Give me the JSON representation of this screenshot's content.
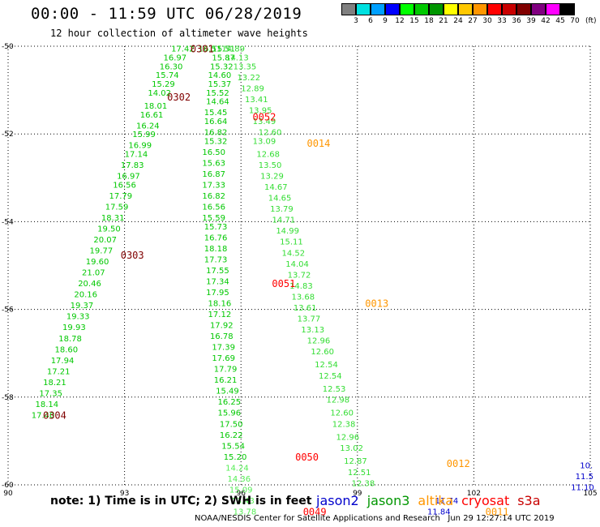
{
  "header": {
    "title": "00:00 - 11:59 UTC 06/28/2019",
    "subtitle": "12 hour collection of altimeter wave heights"
  },
  "colorbar": {
    "unit": "(ft)",
    "labels": [
      "3",
      "6",
      "9",
      "12",
      "15",
      "18",
      "21",
      "24",
      "27",
      "30",
      "33",
      "36",
      "39",
      "42",
      "45",
      "70"
    ],
    "colors": [
      "#808080",
      "#00e0e0",
      "#00a0ff",
      "#0000ff",
      "#00ff00",
      "#00c800",
      "#009600",
      "#ffff00",
      "#ffc800",
      "#ff9600",
      "#ff0000",
      "#c80000",
      "#800000",
      "#800080",
      "#ff00ff",
      "#000000"
    ]
  },
  "footer": {
    "note": "note: 1) Time is in UTC; 2) SWH is in feet",
    "legend": [
      {
        "label": "jason2",
        "color": "#0000cc"
      },
      {
        "label": "jason3",
        "color": "#009600"
      },
      {
        "label": "altika",
        "color": "#ff9600"
      },
      {
        "label": "cryosat",
        "color": "#ff0000"
      },
      {
        "label": "s3a",
        "color": "#c80000"
      }
    ],
    "credit": "NOAA/NESDIS Center for Satellite Applications and Research   Jun 29 12:27:14 UTC 2019"
  },
  "chart_data": {
    "type": "scatter",
    "title": "00:00 - 11:59 UTC 06/28/2019",
    "xlim": [
      90,
      105
    ],
    "ylim": [
      -60,
      -50
    ],
    "xticks": [
      "90",
      "93",
      "96",
      "99",
      "102",
      "105"
    ],
    "yticks": [
      "-50",
      "-52",
      "-54",
      "-56",
      "-58",
      "-60"
    ],
    "grid": true,
    "series": [
      {
        "satellite": "track-1",
        "color": "#00c800",
        "points": [
          {
            "x": 94.5,
            "y": -50.05,
            "v": "17.42"
          },
          {
            "x": 95.2,
            "y": -50.05,
            "v": "16.51"
          },
          {
            "x": 94.3,
            "y": -50.25,
            "v": "16.97"
          },
          {
            "x": 94.2,
            "y": -50.45,
            "v": "16.30"
          },
          {
            "x": 94.1,
            "y": -50.65,
            "v": "15.74"
          },
          {
            "x": 94.0,
            "y": -50.85,
            "v": "15.29"
          },
          {
            "x": 93.9,
            "y": -51.05,
            "v": "14.02"
          },
          {
            "x": 93.8,
            "y": -51.35,
            "v": "18.01"
          },
          {
            "x": 93.7,
            "y": -51.55,
            "v": "16.61"
          },
          {
            "x": 93.6,
            "y": -51.8,
            "v": "16.24"
          },
          {
            "x": 93.5,
            "y": -52.0,
            "v": "15.99"
          },
          {
            "x": 93.4,
            "y": -52.25,
            "v": "16.99"
          },
          {
            "x": 93.3,
            "y": -52.45,
            "v": "17.14"
          },
          {
            "x": 93.2,
            "y": -52.7,
            "v": "17.83"
          },
          {
            "x": 93.1,
            "y": -52.95,
            "v": "16.97"
          },
          {
            "x": 93.0,
            "y": -53.15,
            "v": "16.56"
          },
          {
            "x": 92.9,
            "y": -53.4,
            "v": "17.79"
          },
          {
            "x": 92.8,
            "y": -53.65,
            "v": "17.59"
          },
          {
            "x": 92.7,
            "y": -53.9,
            "v": "18.31"
          },
          {
            "x": 92.6,
            "y": -54.15,
            "v": "19.50"
          },
          {
            "x": 92.5,
            "y": -54.4,
            "v": "20.07"
          },
          {
            "x": 92.4,
            "y": -54.65,
            "v": "19.77"
          },
          {
            "x": 92.3,
            "y": -54.9,
            "v": "19.60"
          },
          {
            "x": 92.2,
            "y": -55.15,
            "v": "21.07"
          },
          {
            "x": 92.1,
            "y": -55.4,
            "v": "20.46"
          },
          {
            "x": 92.0,
            "y": -55.65,
            "v": "20.16"
          },
          {
            "x": 91.9,
            "y": -55.9,
            "v": "19.37"
          },
          {
            "x": 91.8,
            "y": -56.15,
            "v": "19.33"
          },
          {
            "x": 91.7,
            "y": -56.4,
            "v": "19.93"
          },
          {
            "x": 91.6,
            "y": -56.65,
            "v": "18.78"
          },
          {
            "x": 91.5,
            "y": -56.9,
            "v": "18.60"
          },
          {
            "x": 91.4,
            "y": -57.15,
            "v": "17.94"
          },
          {
            "x": 91.3,
            "y": -57.4,
            "v": "17.21"
          },
          {
            "x": 91.2,
            "y": -57.65,
            "v": "18.21"
          },
          {
            "x": 91.1,
            "y": -57.9,
            "v": "17.35"
          },
          {
            "x": 91.0,
            "y": -58.15,
            "v": "18.14"
          },
          {
            "x": 90.9,
            "y": -58.4,
            "v": "17.40"
          }
        ]
      },
      {
        "satellite": "track-2",
        "color": "#00c800",
        "points": [
          {
            "x": 95.55,
            "y": -50.05,
            "v": "15.51"
          },
          {
            "x": 95.55,
            "y": -50.25,
            "v": "15.87"
          },
          {
            "x": 95.5,
            "y": -50.45,
            "v": "15.32"
          },
          {
            "x": 95.45,
            "y": -50.65,
            "v": "14.60"
          },
          {
            "x": 95.45,
            "y": -50.85,
            "v": "15.37"
          },
          {
            "x": 95.4,
            "y": -51.05,
            "v": "15.52"
          },
          {
            "x": 95.4,
            "y": -51.25,
            "v": "14.64"
          },
          {
            "x": 95.35,
            "y": -51.5,
            "v": "15.45"
          },
          {
            "x": 95.35,
            "y": -51.7,
            "v": "16.64"
          },
          {
            "x": 95.35,
            "y": -51.95,
            "v": "16.82"
          },
          {
            "x": 95.35,
            "y": -52.15,
            "v": "15.32"
          },
          {
            "x": 95.3,
            "y": -52.4,
            "v": "16.50"
          },
          {
            "x": 95.3,
            "y": -52.65,
            "v": "15.63"
          },
          {
            "x": 95.3,
            "y": -52.9,
            "v": "16.87"
          },
          {
            "x": 95.3,
            "y": -53.15,
            "v": "17.33"
          },
          {
            "x": 95.3,
            "y": -53.4,
            "v": "16.82"
          },
          {
            "x": 95.3,
            "y": -53.65,
            "v": "16.56"
          },
          {
            "x": 95.3,
            "y": -53.9,
            "v": "15.59"
          },
          {
            "x": 95.35,
            "y": -54.1,
            "v": "15.73"
          },
          {
            "x": 95.35,
            "y": -54.35,
            "v": "16.76"
          },
          {
            "x": 95.35,
            "y": -54.6,
            "v": "18.18"
          },
          {
            "x": 95.35,
            "y": -54.85,
            "v": "17.73"
          },
          {
            "x": 95.4,
            "y": -55.1,
            "v": "17.55"
          },
          {
            "x": 95.4,
            "y": -55.35,
            "v": "17.34"
          },
          {
            "x": 95.4,
            "y": -55.6,
            "v": "17.95"
          },
          {
            "x": 95.45,
            "y": -55.85,
            "v": "18.16"
          },
          {
            "x": 95.45,
            "y": -56.1,
            "v": "17.12"
          },
          {
            "x": 95.5,
            "y": -56.35,
            "v": "17.92"
          },
          {
            "x": 95.5,
            "y": -56.6,
            "v": "16.78"
          },
          {
            "x": 95.55,
            "y": -56.85,
            "v": "17.39"
          },
          {
            "x": 95.55,
            "y": -57.1,
            "v": "17.69"
          },
          {
            "x": 95.6,
            "y": -57.35,
            "v": "17.79"
          },
          {
            "x": 95.6,
            "y": -57.6,
            "v": "16.21"
          },
          {
            "x": 95.65,
            "y": -57.85,
            "v": "15.49"
          },
          {
            "x": 95.7,
            "y": -58.1,
            "v": "16.25"
          },
          {
            "x": 95.7,
            "y": -58.35,
            "v": "15.96"
          },
          {
            "x": 95.75,
            "y": -58.6,
            "v": "17.50"
          },
          {
            "x": 95.75,
            "y": -58.85,
            "v": "16.22"
          },
          {
            "x": 95.8,
            "y": -59.1,
            "v": "15.54"
          },
          {
            "x": 95.85,
            "y": -59.35,
            "v": "15.20"
          }
        ]
      },
      {
        "satellite": "track-3",
        "color": "#33dd33",
        "points": [
          {
            "x": 95.8,
            "y": -50.05,
            "v": "14.89"
          },
          {
            "x": 95.9,
            "y": -50.25,
            "v": "14.13"
          },
          {
            "x": 96.1,
            "y": -50.45,
            "v": "13.35"
          },
          {
            "x": 96.2,
            "y": -50.7,
            "v": "13.22"
          },
          {
            "x": 96.3,
            "y": -50.95,
            "v": "12.89"
          },
          {
            "x": 96.4,
            "y": -51.2,
            "v": "13.41"
          },
          {
            "x": 96.5,
            "y": -51.45,
            "v": "13.95"
          },
          {
            "x": 96.6,
            "y": -51.7,
            "v": "13.49"
          },
          {
            "x": 96.75,
            "y": -51.95,
            "v": "12.60"
          },
          {
            "x": 96.6,
            "y": -52.15,
            "v": "13.09"
          },
          {
            "x": 96.7,
            "y": -52.45,
            "v": "12.68"
          },
          {
            "x": 96.75,
            "y": -52.7,
            "v": "13.50"
          },
          {
            "x": 96.8,
            "y": -52.95,
            "v": "13.29"
          },
          {
            "x": 96.9,
            "y": -53.2,
            "v": "14.67"
          },
          {
            "x": 97.0,
            "y": -53.45,
            "v": "14.65"
          },
          {
            "x": 97.05,
            "y": -53.7,
            "v": "13.79"
          },
          {
            "x": 97.1,
            "y": -53.95,
            "v": "14.71"
          },
          {
            "x": 97.2,
            "y": -54.2,
            "v": "14.99"
          },
          {
            "x": 97.3,
            "y": -54.45,
            "v": "15.11"
          },
          {
            "x": 97.35,
            "y": -54.7,
            "v": "14.52"
          },
          {
            "x": 97.45,
            "y": -54.95,
            "v": "14.04"
          },
          {
            "x": 97.5,
            "y": -55.2,
            "v": "13.72"
          },
          {
            "x": 97.55,
            "y": -55.45,
            "v": "14.83"
          },
          {
            "x": 97.6,
            "y": -55.7,
            "v": "13.68"
          },
          {
            "x": 97.65,
            "y": -55.95,
            "v": "13.61"
          },
          {
            "x": 97.75,
            "y": -56.2,
            "v": "13.77"
          },
          {
            "x": 97.85,
            "y": -56.45,
            "v": "13.13"
          },
          {
            "x": 98.0,
            "y": -56.7,
            "v": "12.96"
          },
          {
            "x": 98.1,
            "y": -56.95,
            "v": "12.60"
          },
          {
            "x": 98.2,
            "y": -57.25,
            "v": "12.54"
          },
          {
            "x": 98.3,
            "y": -57.5,
            "v": "12.54"
          },
          {
            "x": 98.4,
            "y": -57.8,
            "v": "12.53"
          },
          {
            "x": 98.5,
            "y": -58.05,
            "v": "12.98"
          },
          {
            "x": 98.6,
            "y": -58.35,
            "v": "12.60"
          },
          {
            "x": 98.65,
            "y": -58.6,
            "v": "12.38"
          },
          {
            "x": 98.75,
            "y": -58.9,
            "v": "12.96"
          },
          {
            "x": 98.85,
            "y": -59.15,
            "v": "13.02"
          },
          {
            "x": 98.95,
            "y": -59.45,
            "v": "12.87"
          },
          {
            "x": 99.05,
            "y": -59.7,
            "v": "12.51"
          },
          {
            "x": 99.15,
            "y": -59.95,
            "v": "12.38"
          }
        ]
      },
      {
        "satellite": "track-4",
        "color": "#55ee55",
        "points": [
          {
            "x": 95.9,
            "y": -59.6,
            "v": "14.24"
          },
          {
            "x": 95.95,
            "y": -59.85,
            "v": "14.36"
          },
          {
            "x": 96.0,
            "y": -60.1,
            "v": "15.09"
          },
          {
            "x": 96.05,
            "y": -60.35,
            "v": "13.43"
          },
          {
            "x": 96.1,
            "y": -60.6,
            "v": "13.78"
          }
        ]
      },
      {
        "satellite": "jason2",
        "color": "#0000cc",
        "points": [
          {
            "x": 101.3,
            "y": -60.35,
            "v": "11.74"
          },
          {
            "x": 101.1,
            "y": -60.6,
            "v": "11.84"
          },
          {
            "x": 104.9,
            "y": -59.55,
            "v": "10."
          },
          {
            "x": 104.85,
            "y": -59.8,
            "v": "11.5"
          },
          {
            "x": 104.8,
            "y": -60.05,
            "v": "11.10"
          }
        ]
      }
    ],
    "pass_labels": [
      {
        "label": "0301",
        "x": 95.0,
        "y": -50.05,
        "color": "#800000"
      },
      {
        "label": "0302",
        "x": 94.4,
        "y": -51.15,
        "color": "#800000"
      },
      {
        "label": "0052",
        "x": 96.6,
        "y": -51.6,
        "color": "#ff0000"
      },
      {
        "label": "0014",
        "x": 98.0,
        "y": -52.2,
        "color": "#ff9600"
      },
      {
        "label": "0303",
        "x": 93.2,
        "y": -54.75,
        "color": "#800000"
      },
      {
        "label": "0051",
        "x": 97.1,
        "y": -55.4,
        "color": "#ff0000"
      },
      {
        "label": "0013",
        "x": 99.5,
        "y": -55.85,
        "color": "#ff9600"
      },
      {
        "label": "0304",
        "x": 91.2,
        "y": -58.4,
        "color": "#800000"
      },
      {
        "label": "0050",
        "x": 97.7,
        "y": -59.35,
        "color": "#ff0000"
      },
      {
        "label": "0012",
        "x": 101.6,
        "y": -59.5,
        "color": "#ff9600"
      },
      {
        "label": "0049",
        "x": 97.9,
        "y": -60.6,
        "color": "#ff0000"
      },
      {
        "label": "0011",
        "x": 102.6,
        "y": -60.6,
        "color": "#ff9600"
      }
    ]
  }
}
